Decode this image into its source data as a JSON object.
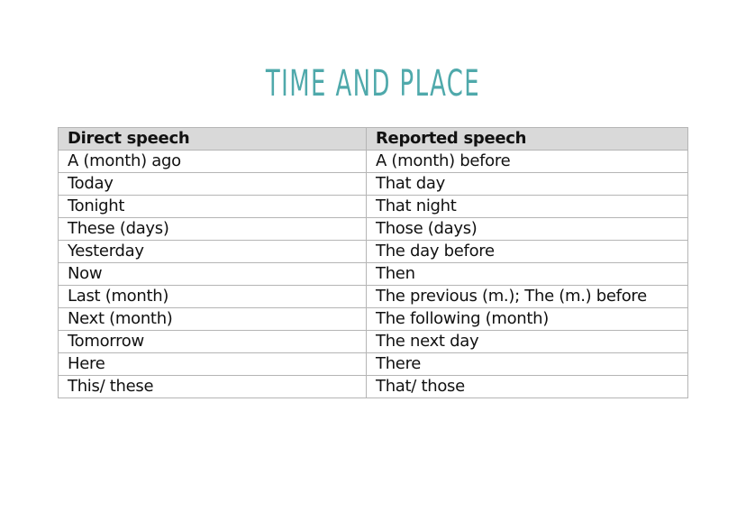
{
  "title": "TIME AND PLACE",
  "table": {
    "headers": [
      "Direct speech",
      "Reported speech"
    ],
    "rows": [
      [
        "A (month) ago",
        "A (month) before"
      ],
      [
        "Today",
        "That day"
      ],
      [
        "Tonight",
        "That night"
      ],
      [
        "These (days)",
        "Those (days)"
      ],
      [
        "Yesterday",
        "The day before"
      ],
      [
        "Now",
        "Then"
      ],
      [
        "Last (month)",
        "The previous (m.); The (m.) before"
      ],
      [
        "Next (month)",
        "The following (month)"
      ],
      [
        "Tomorrow",
        "The next day"
      ],
      [
        "Here",
        "There"
      ],
      [
        "This/ these",
        "That/ those"
      ]
    ]
  },
  "colors": {
    "title": "#4fa9ab",
    "header_bg": "#d9d9d9",
    "border": "#b5b5b5"
  }
}
